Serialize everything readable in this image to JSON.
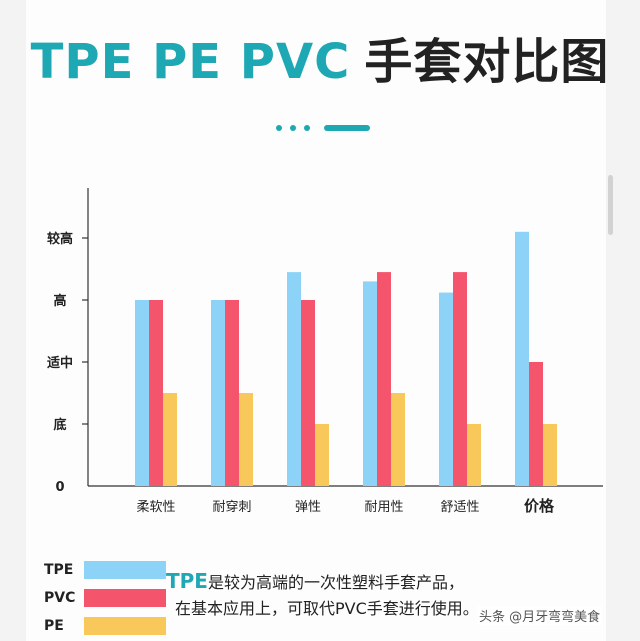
{
  "title": {
    "latin": "TPE PE PVC",
    "cjk": "手套对比图"
  },
  "chart_data": {
    "type": "bar",
    "categories": [
      "柔软性",
      "耐穿刺",
      "弹性",
      "耐用性",
      "舒适性",
      "价格"
    ],
    "y_tick_labels": [
      "0",
      "底",
      "适中",
      "高",
      "较高"
    ],
    "ylim": [
      0,
      4.4
    ],
    "series": [
      {
        "name": "TPE",
        "color": "#8dd3f8",
        "values": [
          3.0,
          3.0,
          3.45,
          3.3,
          3.12,
          4.1
        ]
      },
      {
        "name": "PVC",
        "color": "#f4546c",
        "values": [
          3.0,
          3.0,
          3.0,
          3.45,
          3.45,
          2.0
        ]
      },
      {
        "name": "PE",
        "color": "#f8c85a",
        "values": [
          1.5,
          1.5,
          1.0,
          1.5,
          1.0,
          1.0
        ]
      }
    ],
    "grid": false,
    "legend": "bottom-left"
  },
  "note": {
    "highlight": "TPE",
    "line1_rest": "是较为高端的一次性塑料手套产品，",
    "line2": "在基本应用上，可取代PVC手套进行使用。"
  },
  "watermark": "头条 @月牙弯弯美食"
}
